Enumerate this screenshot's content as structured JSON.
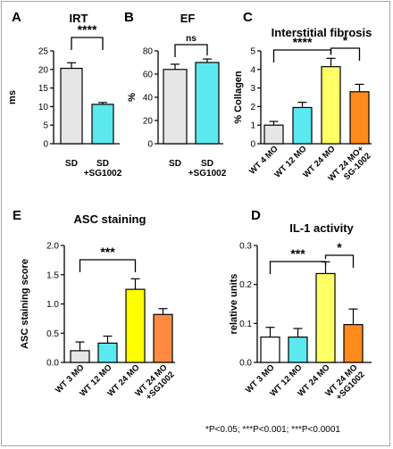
{
  "footnote": "*P<0.05; ***P<0.001; ***P<0.0001",
  "chart_data": [
    {
      "panel": "A",
      "type": "bar",
      "title": "IRT",
      "ylabel": "ms",
      "ylim": [
        0,
        25
      ],
      "yticks": [
        0,
        5,
        10,
        15,
        20,
        25
      ],
      "categories": [
        [
          "SD"
        ],
        [
          "SD",
          "+SG1002"
        ]
      ],
      "values": [
        20.3,
        10.6
      ],
      "errors": [
        1.5,
        0.5
      ],
      "colors": [
        "#e6e6e6",
        "#5ce8ef"
      ],
      "brackets": [
        {
          "from": 0,
          "to": 1,
          "label": "****"
        }
      ]
    },
    {
      "panel": "B",
      "type": "bar",
      "title": "EF",
      "ylabel": "%",
      "ylim": [
        0,
        80
      ],
      "yticks": [
        0,
        20,
        40,
        60,
        80
      ],
      "categories": [
        [
          "SD"
        ],
        [
          "SD",
          "+SG1002"
        ]
      ],
      "values": [
        64,
        70
      ],
      "errors": [
        4.5,
        3
      ],
      "colors": [
        "#e6e6e6",
        "#5ce8ef"
      ],
      "brackets": [
        {
          "from": 0,
          "to": 1,
          "label": "ns"
        }
      ]
    },
    {
      "panel": "C",
      "type": "bar",
      "title": "Interstitial fibrosis",
      "ylabel": "% Collagen",
      "ylim": [
        0,
        5
      ],
      "yticks": [
        0,
        1,
        2,
        3,
        4,
        5
      ],
      "categories": [
        [
          "WT 4 MO"
        ],
        [
          "WT 12 MO"
        ],
        [
          "WT 24 MO"
        ],
        [
          "WT 24 MO+",
          "SG-1002"
        ]
      ],
      "values": [
        1.0,
        1.95,
        4.15,
        2.8
      ],
      "errors": [
        0.2,
        0.28,
        0.45,
        0.4
      ],
      "colors": [
        "#e6e6e6",
        "#5ce8ef",
        "#ffff66",
        "#ff8c1a"
      ],
      "brackets": [
        {
          "from": 0,
          "to": 2,
          "label": "****"
        },
        {
          "from": 2,
          "to": 3,
          "label": "*"
        }
      ]
    },
    {
      "panel": "E",
      "type": "bar",
      "title": "ASC staining",
      "ylabel": "ASC staining score",
      "ylim": [
        0,
        2
      ],
      "yticks": [
        "0.0",
        "0.5",
        "1.0",
        "1.5",
        "2.0"
      ],
      "categories": [
        [
          "WT 3 MO"
        ],
        [
          "WT 12 MO"
        ],
        [
          "WT 24 MO"
        ],
        [
          "WT 24 MO",
          "+SG1002"
        ]
      ],
      "values": [
        0.2,
        0.33,
        1.25,
        0.82
      ],
      "errors": [
        0.15,
        0.12,
        0.18,
        0.1
      ],
      "colors": [
        "#e6e6e6",
        "#5ce8ef",
        "#ffff00",
        "#ff8c40"
      ],
      "brackets": [
        {
          "from": 0,
          "to": 2,
          "label": "***"
        }
      ]
    },
    {
      "panel": "D",
      "type": "bar",
      "title": "IL-1 activity",
      "ylabel": "relative units",
      "ylim": [
        0,
        0.3
      ],
      "yticks": [
        "0.0",
        "0.1",
        "0.2",
        "0.3"
      ],
      "categories": [
        [
          "WT 3 MO"
        ],
        [
          "WT 12 MO"
        ],
        [
          "WT 24 MO"
        ],
        [
          "WT 24 MO",
          "+SG1002"
        ]
      ],
      "values": [
        0.065,
        0.065,
        0.228,
        0.097
      ],
      "errors": [
        0.025,
        0.022,
        0.03,
        0.04
      ],
      "colors": [
        "#ffffff",
        "#5ce8ef",
        "#ffff66",
        "#ff8c1a"
      ],
      "brackets": [
        {
          "from": 0,
          "to": 2,
          "label": "***"
        },
        {
          "from": 2,
          "to": 3,
          "label": "*"
        }
      ]
    }
  ]
}
